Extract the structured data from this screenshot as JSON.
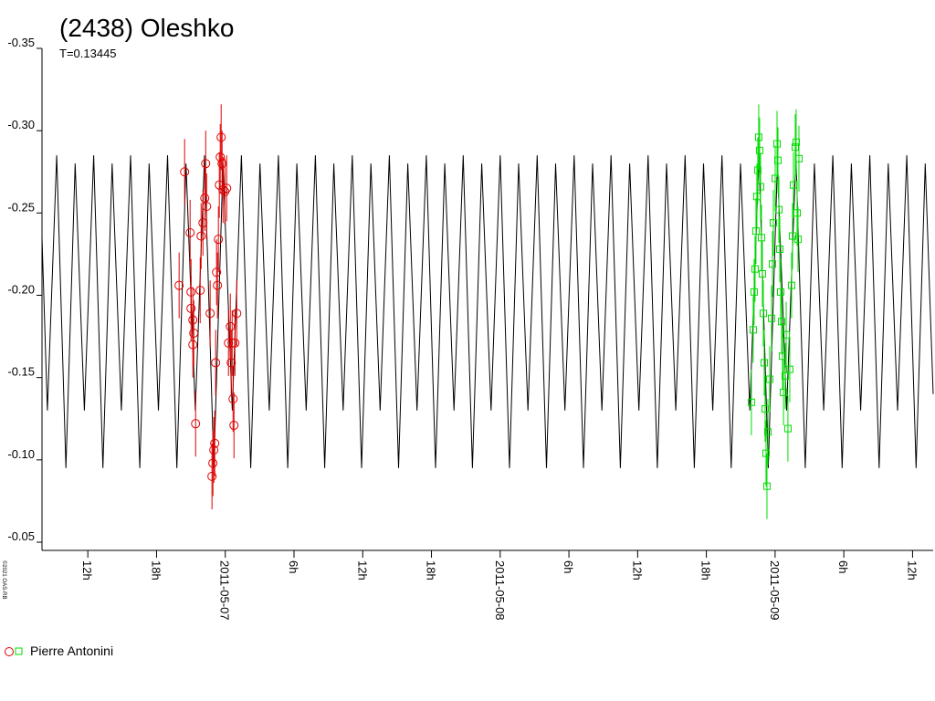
{
  "chart_data": {
    "type": "lightcurve",
    "title": "(2438) Oleshko",
    "subtitle": "T=0.13445",
    "credit": "©2021 OAS-RB",
    "xlim": [
      8,
      85.8
    ],
    "xticks": [
      {
        "value": 12,
        "label": "12h"
      },
      {
        "value": 18,
        "label": "18h"
      },
      {
        "value": 24,
        "label": "2011-05-07"
      },
      {
        "value": 30,
        "label": "6h"
      },
      {
        "value": 36,
        "label": "12h"
      },
      {
        "value": 42,
        "label": "18h"
      },
      {
        "value": 48,
        "label": "2011-05-08"
      },
      {
        "value": 54,
        "label": "6h"
      },
      {
        "value": 60,
        "label": "12h"
      },
      {
        "value": 66,
        "label": "18h"
      },
      {
        "value": 72,
        "label": "2011-05-09"
      },
      {
        "value": 78,
        "label": "6h"
      },
      {
        "value": 84,
        "label": "12h"
      }
    ],
    "ylim": [
      -0.35,
      -0.05
    ],
    "y_inverted": true,
    "yticks": [
      -0.35,
      {
        "value": -0.3,
        "label": "-0.30"
      },
      -0.25,
      {
        "value": -0.2,
        "label": "-0.20"
      },
      -0.15,
      {
        "value": -0.1,
        "label": "-0.10"
      },
      -0.05
    ],
    "model": {
      "color": "#000000",
      "x": [
        8.0,
        8.47,
        9.28,
        10.09,
        10.89,
        11.7,
        12.51,
        13.32,
        14.12,
        14.93,
        15.73,
        16.54,
        17.35,
        18.16,
        18.96,
        19.77,
        20.57,
        21.38,
        22.19,
        23.0,
        23.8,
        24.61,
        25.41,
        26.22,
        27.03,
        27.84,
        28.64,
        29.45,
        30.25,
        31.06,
        31.87,
        32.68,
        33.48,
        34.29,
        35.09,
        35.9,
        36.71,
        37.52,
        38.32,
        39.13,
        39.93,
        40.74,
        41.55,
        42.36,
        43.16,
        43.97,
        44.77,
        45.58,
        46.39,
        47.2,
        48.0,
        48.81,
        49.61,
        50.42,
        51.23,
        52.04,
        52.84,
        53.65,
        54.46,
        55.27,
        56.07,
        56.88,
        57.68,
        58.49,
        59.3,
        60.11,
        60.91,
        61.72,
        62.52,
        63.33,
        64.14,
        64.95,
        65.75,
        66.56,
        67.36,
        68.17,
        68.98,
        69.79,
        70.59,
        71.4,
        72.2,
        73.01,
        73.82,
        74.63,
        75.43,
        76.24,
        77.04,
        77.85,
        78.66,
        79.47,
        80.27,
        81.08,
        81.88,
        82.69,
        83.5,
        84.31,
        85.11,
        85.8
      ],
      "values": [
        -0.235,
        -0.13,
        -0.285,
        -0.095,
        -0.28,
        -0.13,
        -0.285,
        -0.095,
        -0.28,
        -0.13,
        -0.285,
        -0.095,
        -0.28,
        -0.13,
        -0.285,
        -0.095,
        -0.28,
        -0.13,
        -0.285,
        -0.095,
        -0.28,
        -0.13,
        -0.285,
        -0.095,
        -0.28,
        -0.13,
        -0.285,
        -0.095,
        -0.28,
        -0.13,
        -0.285,
        -0.095,
        -0.28,
        -0.13,
        -0.285,
        -0.095,
        -0.28,
        -0.13,
        -0.285,
        -0.095,
        -0.28,
        -0.13,
        -0.285,
        -0.095,
        -0.28,
        -0.13,
        -0.285,
        -0.095,
        -0.28,
        -0.13,
        -0.285,
        -0.095,
        -0.28,
        -0.13,
        -0.285,
        -0.095,
        -0.28,
        -0.13,
        -0.285,
        -0.095,
        -0.28,
        -0.13,
        -0.285,
        -0.095,
        -0.28,
        -0.13,
        -0.285,
        -0.095,
        -0.28,
        -0.13,
        -0.285,
        -0.095,
        -0.28,
        -0.13,
        -0.285,
        -0.095,
        -0.28,
        -0.13,
        -0.285,
        -0.095,
        -0.28,
        -0.13,
        -0.285,
        -0.095,
        -0.28,
        -0.13,
        -0.285,
        -0.095,
        -0.28,
        -0.13,
        -0.285,
        -0.095,
        -0.28,
        -0.13,
        -0.285,
        -0.095,
        -0.28,
        -0.14
      ]
    },
    "legend_label": "Pierre Antonini",
    "series": [
      {
        "marker": "circle",
        "color": "#e00000",
        "error": 0.02,
        "x": [
          20.45,
          20.93,
          19.97,
          21.01,
          21.01,
          21.17,
          21.25,
          21.17,
          21.41,
          21.81,
          21.89,
          22.05,
          22.21,
          22.29,
          22.37,
          22.68,
          22.84,
          22.92,
          23.0,
          23.08,
          23.16,
          23.24,
          23.32,
          23.4,
          23.48,
          23.56,
          23.64,
          23.72,
          23.8,
          23.96,
          24.12,
          24.28,
          24.44,
          24.52,
          24.6,
          24.68,
          24.76,
          24.84,
          25.0
        ],
        "values": [
          -0.275,
          -0.238,
          -0.206,
          -0.202,
          -0.192,
          -0.185,
          -0.177,
          -0.17,
          -0.122,
          -0.203,
          -0.236,
          -0.244,
          -0.259,
          -0.28,
          -0.254,
          -0.189,
          -0.09,
          -0.098,
          -0.106,
          -0.11,
          -0.159,
          -0.214,
          -0.206,
          -0.234,
          -0.267,
          -0.284,
          -0.296,
          -0.28,
          -0.264,
          -0.263,
          -0.265,
          -0.171,
          -0.181,
          -0.159,
          -0.171,
          -0.137,
          -0.121,
          -0.171,
          -0.189
        ]
      },
      {
        "marker": "square",
        "color": "#00dd00",
        "error": 0.02,
        "x": [
          69.93,
          70.09,
          70.17,
          70.25,
          70.33,
          70.41,
          70.49,
          70.57,
          70.65,
          70.73,
          70.81,
          70.89,
          70.97,
          71.05,
          71.13,
          71.21,
          71.29,
          71.37,
          71.53,
          71.69,
          71.77,
          71.85,
          72.01,
          72.17,
          72.25,
          72.33,
          72.41,
          72.49,
          72.57,
          72.65,
          72.73,
          72.89,
          72.97,
          73.12,
          73.28,
          73.44,
          73.52,
          73.6,
          73.76,
          73.84,
          73.92,
          74.0,
          74.08
        ],
        "values": [
          -0.135,
          -0.179,
          -0.202,
          -0.216,
          -0.239,
          -0.26,
          -0.276,
          -0.296,
          -0.288,
          -0.266,
          -0.235,
          -0.213,
          -0.189,
          -0.159,
          -0.131,
          -0.104,
          -0.084,
          -0.117,
          -0.149,
          -0.186,
          -0.219,
          -0.244,
          -0.271,
          -0.292,
          -0.282,
          -0.252,
          -0.228,
          -0.202,
          -0.184,
          -0.163,
          -0.141,
          -0.151,
          -0.176,
          -0.119,
          -0.155,
          -0.206,
          -0.236,
          -0.267,
          -0.29,
          -0.293,
          -0.25,
          -0.234,
          -0.283
        ]
      }
    ]
  }
}
